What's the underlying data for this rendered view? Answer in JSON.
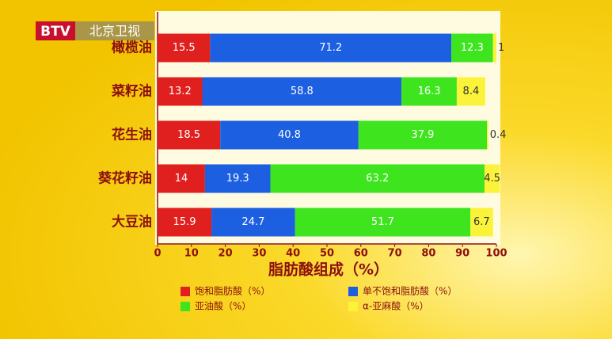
{
  "logo": "BTV",
  "channel": "北京卫视",
  "chart_data": {
    "type": "stacked-bar-horizontal",
    "x_label": "脂肪酸组成（%）",
    "categories": [
      "橄榄油",
      "菜籽油",
      "花生油",
      "葵花籽油",
      "大豆油"
    ],
    "series": [
      {
        "name": "饱和脂肪酸（%）",
        "color": "#e0201e",
        "values": [
          15.5,
          13.2,
          18.5,
          14,
          15.9
        ]
      },
      {
        "name": "单不饱和脂肪酸（%）",
        "color": "#1c5fe0",
        "values": [
          71.2,
          58.8,
          40.8,
          19.3,
          24.7
        ]
      },
      {
        "name": "亚油酸（%）",
        "color": "#3ee51e",
        "values": [
          12.3,
          16.3,
          37.9,
          63.2,
          51.7
        ]
      },
      {
        "name": "α-亚麻酸（%）",
        "color": "#fbf23a",
        "values": [
          1,
          8.4,
          0.4,
          4.5,
          6.7
        ]
      }
    ],
    "xlim": [
      0,
      100
    ],
    "xticks": [
      0,
      10,
      20,
      30,
      40,
      50,
      60,
      70,
      80,
      90,
      100
    ]
  }
}
